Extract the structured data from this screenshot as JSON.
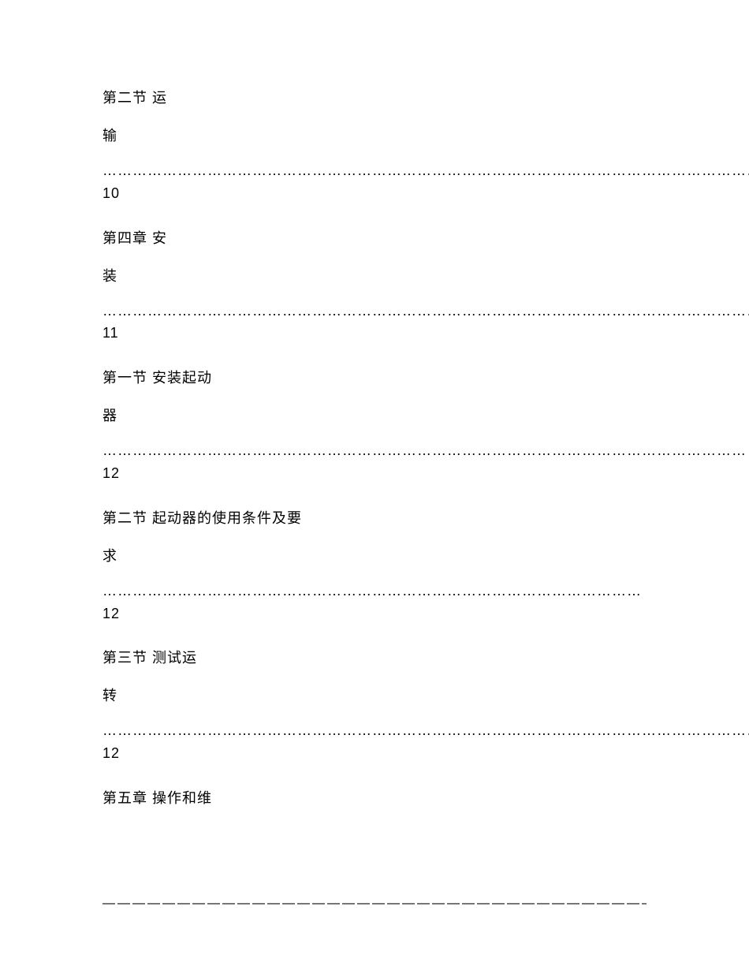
{
  "toc": {
    "entries": [
      {
        "title_line1": "第二节 运",
        "title_line2": "输",
        "leader": "………………………………………………………………………………………………………………………………… 10"
      },
      {
        "title_line1": "第四章 安",
        "title_line2": "装",
        "leader": "…………………………………………………………………………………………………………………………………… 11"
      },
      {
        "title_line1": "第一节 安装起动",
        "title_line2": "器",
        "leader": "………………………………………………………………………………………………………………… 12"
      },
      {
        "title_line1": "第二节 起动器的使用条件及要",
        "title_line2": "求",
        "leader": "……………………………………………………………………………………………… 12"
      },
      {
        "title_line1": "第三节 测试运",
        "title_line2": "转",
        "leader": "……………………………………………………………………………………………………………………… 12"
      },
      {
        "title_line1": "第五章 操作和维",
        "title_line2": "",
        "leader": ""
      }
    ]
  },
  "footer": {
    "divider": "—————————————————————————————————————————"
  }
}
